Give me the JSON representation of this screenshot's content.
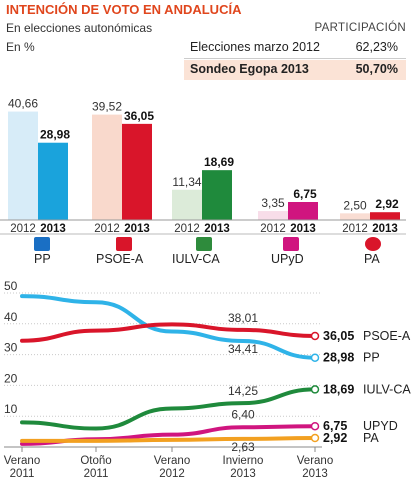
{
  "header": {
    "title": "INTENCIÓN DE VOTO EN ANDALUCÍA",
    "subtitle": "En elecciones autonómicas",
    "unit": "En %"
  },
  "participation": {
    "heading": "PARTICIPACIÓN",
    "rows": [
      {
        "label": "Elecciones marzo 2012",
        "value": "62,23%"
      },
      {
        "label": "Sondeo Egopa 2013",
        "value": "50,70%"
      }
    ]
  },
  "chart_data": [
    {
      "type": "bar",
      "title": "",
      "categories": [
        "PP",
        "PSOE-A",
        "IULV-CA",
        "UPyD",
        "PA"
      ],
      "x_labels": [
        "2012",
        "2013"
      ],
      "series": [
        {
          "name": "2012",
          "values": [
            40.66,
            39.52,
            11.34,
            3.35,
            2.5
          ],
          "labels": [
            "40,66",
            "39,52",
            "11,34",
            "3,35",
            "2,50"
          ]
        },
        {
          "name": "2013",
          "values": [
            28.98,
            36.05,
            18.69,
            6.75,
            2.92
          ],
          "labels": [
            "28,98",
            "36,05",
            "18,69",
            "6,75",
            "2,92"
          ]
        }
      ],
      "colors_2013": [
        "#1aa3dc",
        "#d9152a",
        "#1f8a3c",
        "#d0157f",
        "#d9152a"
      ],
      "colors_2012": [
        "#d7ecf8",
        "#f9d9cc",
        "#dcebd9",
        "#f8dde9",
        "#f9ddd3"
      ],
      "ylim": [
        0,
        45
      ]
    },
    {
      "type": "line",
      "title": "",
      "x": [
        "Verano 2011",
        "Otoño 2011",
        "Verano 2012",
        "Invierno 2013",
        "Verano 2013"
      ],
      "x_ticks": [
        [
          "Verano",
          "2011"
        ],
        [
          "Otoño",
          "2011"
        ],
        [
          "Verano",
          "2012"
        ],
        [
          "Invierno",
          "2013"
        ],
        [
          "Verano",
          "2013"
        ]
      ],
      "y_ticks": [
        "10",
        "20",
        "30",
        "40",
        "50"
      ],
      "ylim": [
        0,
        52
      ],
      "series": [
        {
          "name": "PP",
          "color": "#2fb3e8",
          "values": [
            49.0,
            47.0,
            37.5,
            34.41,
            28.98
          ],
          "end_label": "28,98",
          "end_name": "PP"
        },
        {
          "name": "PSOE-A",
          "color": "#d9152a",
          "values": [
            34.5,
            37.8,
            39.8,
            38.01,
            36.05
          ],
          "end_label": "36,05",
          "end_name": "PSOE-A"
        },
        {
          "name": "IULV-CA",
          "color": "#1f8a3c",
          "values": [
            8.0,
            6.0,
            12.5,
            14.25,
            18.69
          ],
          "end_label": "18,69",
          "end_name": "IULV-CA"
        },
        {
          "name": "UPYD",
          "color": "#d0157f",
          "values": [
            1.0,
            2.5,
            4.0,
            6.4,
            6.75
          ],
          "end_label": "6,75",
          "end_name": "UPYD"
        },
        {
          "name": "PA",
          "color": "#f2a021",
          "values": [
            2.0,
            2.0,
            2.3,
            2.63,
            2.92
          ],
          "end_label": "2,92",
          "end_name": "PA"
        }
      ],
      "annotations": [
        {
          "series": "PSOE-A",
          "index": 3,
          "text": "38,01"
        },
        {
          "series": "PP",
          "index": 3,
          "text": "34,41"
        },
        {
          "series": "IULV-CA",
          "index": 3,
          "text": "14,25"
        },
        {
          "series": "UPYD",
          "index": 3,
          "text": "6,40"
        },
        {
          "series": "PA",
          "index": 3,
          "text": "2,63"
        }
      ],
      "grid": true
    }
  ],
  "logos": [
    "pp-logo-icon",
    "psoe-logo-icon",
    "iulv-logo-icon",
    "upyd-logo-icon",
    "pa-logo-icon"
  ]
}
